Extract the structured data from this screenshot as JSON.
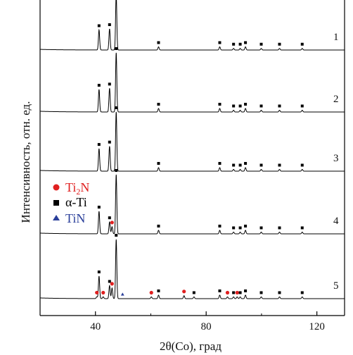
{
  "chart_data": {
    "type": "line",
    "title": "",
    "xlabel": "2θ(Co), град",
    "ylabel": "Интенсивность, отн. ед.",
    "xlim": [
      20,
      130
    ],
    "xticks": [
      40,
      80,
      120
    ],
    "grid": false,
    "legend": {
      "placement": "left-middle",
      "entries": [
        {
          "name": "Ti2N",
          "label_main": "Ti",
          "label_sub": "2",
          "label_tail": "N",
          "marker": "circle",
          "color": "#e02020"
        },
        {
          "name": "α-Ti",
          "label_main": "α-Ti",
          "marker": "square",
          "color": "#000000"
        },
        {
          "name": "TiN",
          "label_main": "TiN",
          "marker": "triangle",
          "color": "#2a3f9a"
        }
      ]
    },
    "peaks_alpha_ti": [
      41.3,
      45.1,
      47.5,
      62.8,
      75.6,
      84.9,
      89.9,
      92.3,
      94.2,
      99.9,
      106.5,
      114.7
    ],
    "series": [
      {
        "name": "1",
        "baseline": 0.0,
        "peaks": [
          {
            "x": 41.3,
            "h": 0.38
          },
          {
            "x": 45.1,
            "h": 0.4
          },
          {
            "x": 47.5,
            "h": 1.05
          },
          {
            "x": 62.8,
            "h": 0.06
          },
          {
            "x": 84.9,
            "h": 0.06
          },
          {
            "x": 89.9,
            "h": 0.03
          },
          {
            "x": 92.3,
            "h": 0.03
          },
          {
            "x": 94.2,
            "h": 0.06
          },
          {
            "x": 99.9,
            "h": 0.03
          },
          {
            "x": 106.5,
            "h": 0.03
          },
          {
            "x": 114.7,
            "h": 0.03
          }
        ],
        "markers": [
          {
            "x": 41.3,
            "type": "alpha-Ti"
          },
          {
            "x": 45.1,
            "type": "alpha-Ti"
          },
          {
            "x": 62.8,
            "type": "alpha-Ti"
          },
          {
            "x": 84.9,
            "type": "alpha-Ti"
          },
          {
            "x": 89.9,
            "type": "alpha-Ti"
          },
          {
            "x": 92.3,
            "type": "alpha-Ti"
          },
          {
            "x": 94.2,
            "type": "alpha-Ti"
          },
          {
            "x": 99.9,
            "type": "alpha-Ti"
          },
          {
            "x": 106.5,
            "type": "alpha-Ti"
          },
          {
            "x": 114.7,
            "type": "alpha-Ti"
          }
        ]
      },
      {
        "name": "2",
        "baseline": 0.0,
        "peaks": [
          {
            "x": 41.3,
            "h": 0.38
          },
          {
            "x": 45.1,
            "h": 0.4
          },
          {
            "x": 47.5,
            "h": 1.0
          },
          {
            "x": 62.8,
            "h": 0.06
          },
          {
            "x": 84.9,
            "h": 0.06
          },
          {
            "x": 89.9,
            "h": 0.03
          },
          {
            "x": 92.3,
            "h": 0.03
          },
          {
            "x": 94.2,
            "h": 0.06
          },
          {
            "x": 99.9,
            "h": 0.03
          },
          {
            "x": 106.5,
            "h": 0.03
          },
          {
            "x": 114.7,
            "h": 0.03
          }
        ],
        "markers": [
          {
            "x": 41.3,
            "type": "alpha-Ti"
          },
          {
            "x": 45.1,
            "type": "alpha-Ti"
          },
          {
            "x": 47.5,
            "type": "alpha-Ti"
          },
          {
            "x": 62.8,
            "type": "alpha-Ti"
          },
          {
            "x": 84.9,
            "type": "alpha-Ti"
          },
          {
            "x": 89.9,
            "type": "alpha-Ti"
          },
          {
            "x": 92.3,
            "type": "alpha-Ti"
          },
          {
            "x": 94.2,
            "type": "alpha-Ti"
          },
          {
            "x": 99.9,
            "type": "alpha-Ti"
          },
          {
            "x": 106.5,
            "type": "alpha-Ti"
          },
          {
            "x": 114.7,
            "type": "alpha-Ti"
          }
        ]
      },
      {
        "name": "3",
        "baseline": 0.0,
        "peaks": [
          {
            "x": 41.3,
            "h": 0.38
          },
          {
            "x": 45.1,
            "h": 0.42
          },
          {
            "x": 47.5,
            "h": 1.0
          },
          {
            "x": 62.8,
            "h": 0.06
          },
          {
            "x": 84.9,
            "h": 0.06
          },
          {
            "x": 89.9,
            "h": 0.03
          },
          {
            "x": 92.3,
            "h": 0.03
          },
          {
            "x": 94.2,
            "h": 0.06
          },
          {
            "x": 99.9,
            "h": 0.03
          },
          {
            "x": 106.5,
            "h": 0.03
          },
          {
            "x": 114.7,
            "h": 0.03
          }
        ],
        "markers": [
          {
            "x": 41.3,
            "type": "alpha-Ti"
          },
          {
            "x": 45.1,
            "type": "alpha-Ti"
          },
          {
            "x": 47.5,
            "type": "alpha-Ti"
          },
          {
            "x": 62.8,
            "type": "alpha-Ti"
          },
          {
            "x": 84.9,
            "type": "alpha-Ti"
          },
          {
            "x": 89.9,
            "type": "alpha-Ti"
          },
          {
            "x": 92.3,
            "type": "alpha-Ti"
          },
          {
            "x": 94.2,
            "type": "alpha-Ti"
          },
          {
            "x": 99.9,
            "type": "alpha-Ti"
          },
          {
            "x": 106.5,
            "type": "alpha-Ti"
          },
          {
            "x": 114.7,
            "type": "alpha-Ti"
          }
        ]
      },
      {
        "name": "4",
        "baseline": 0.0,
        "peaks": [
          {
            "x": 41.3,
            "h": 0.38
          },
          {
            "x": 45.1,
            "h": 0.2
          },
          {
            "x": 46.0,
            "h": 0.12
          },
          {
            "x": 47.5,
            "h": 1.0
          },
          {
            "x": 62.8,
            "h": 0.06
          },
          {
            "x": 84.9,
            "h": 0.06
          },
          {
            "x": 89.9,
            "h": 0.03
          },
          {
            "x": 92.3,
            "h": 0.03
          },
          {
            "x": 94.2,
            "h": 0.06
          },
          {
            "x": 99.9,
            "h": 0.03
          },
          {
            "x": 106.5,
            "h": 0.03
          },
          {
            "x": 114.7,
            "h": 0.03
          }
        ],
        "markers": [
          {
            "x": 41.3,
            "type": "alpha-Ti"
          },
          {
            "x": 45.1,
            "type": "alpha-Ti"
          },
          {
            "x": 46.0,
            "type": "Ti2N"
          },
          {
            "x": 47.5,
            "type": "alpha-Ti"
          },
          {
            "x": 62.8,
            "type": "alpha-Ti"
          },
          {
            "x": 84.9,
            "type": "alpha-Ti"
          },
          {
            "x": 89.9,
            "type": "alpha-Ti"
          },
          {
            "x": 92.3,
            "type": "alpha-Ti"
          },
          {
            "x": 94.2,
            "type": "alpha-Ti"
          },
          {
            "x": 99.9,
            "type": "alpha-Ti"
          },
          {
            "x": 106.5,
            "type": "alpha-Ti"
          },
          {
            "x": 114.7,
            "type": "alpha-Ti"
          }
        ]
      },
      {
        "name": "5",
        "baseline": 0.0,
        "peaks": [
          {
            "x": 40.5,
            "h": 0.03
          },
          {
            "x": 41.3,
            "h": 0.38
          },
          {
            "x": 42.8,
            "h": 0.03
          },
          {
            "x": 45.1,
            "h": 0.22
          },
          {
            "x": 46.0,
            "h": 0.18
          },
          {
            "x": 47.5,
            "h": 1.0
          },
          {
            "x": 60.2,
            "h": 0.03
          },
          {
            "x": 62.8,
            "h": 0.06
          },
          {
            "x": 72.0,
            "h": 0.05
          },
          {
            "x": 75.6,
            "h": 0.03
          },
          {
            "x": 84.9,
            "h": 0.06
          },
          {
            "x": 87.7,
            "h": 0.03
          },
          {
            "x": 89.9,
            "h": 0.03
          },
          {
            "x": 91.2,
            "h": 0.03
          },
          {
            "x": 92.3,
            "h": 0.03
          },
          {
            "x": 94.2,
            "h": 0.06
          },
          {
            "x": 99.9,
            "h": 0.03
          },
          {
            "x": 106.5,
            "h": 0.03
          },
          {
            "x": 114.7,
            "h": 0.03
          }
        ],
        "markers": [
          {
            "x": 40.5,
            "type": "Ti2N"
          },
          {
            "x": 41.3,
            "type": "alpha-Ti"
          },
          {
            "x": 42.8,
            "type": "Ti2N"
          },
          {
            "x": 45.1,
            "type": "alpha-Ti"
          },
          {
            "x": 46.0,
            "type": "Ti2N"
          },
          {
            "x": 47.5,
            "type": "alpha-Ti"
          },
          {
            "x": 49.8,
            "type": "TiN"
          },
          {
            "x": 60.2,
            "type": "Ti2N"
          },
          {
            "x": 62.8,
            "type": "alpha-Ti"
          },
          {
            "x": 72.0,
            "type": "Ti2N"
          },
          {
            "x": 75.6,
            "type": "alpha-Ti"
          },
          {
            "x": 84.9,
            "type": "alpha-Ti"
          },
          {
            "x": 87.7,
            "type": "Ti2N"
          },
          {
            "x": 89.9,
            "type": "alpha-Ti"
          },
          {
            "x": 91.2,
            "type": "Ti2N"
          },
          {
            "x": 92.3,
            "type": "alpha-Ti"
          },
          {
            "x": 94.2,
            "type": "alpha-Ti"
          },
          {
            "x": 99.9,
            "type": "alpha-Ti"
          },
          {
            "x": 106.5,
            "type": "alpha-Ti"
          },
          {
            "x": 114.7,
            "type": "alpha-Ti"
          }
        ]
      }
    ]
  },
  "colors": {
    "ti2n": "#e02020",
    "alpha_ti": "#000000",
    "tin": "#2a3f9a",
    "axis": "#000000"
  }
}
